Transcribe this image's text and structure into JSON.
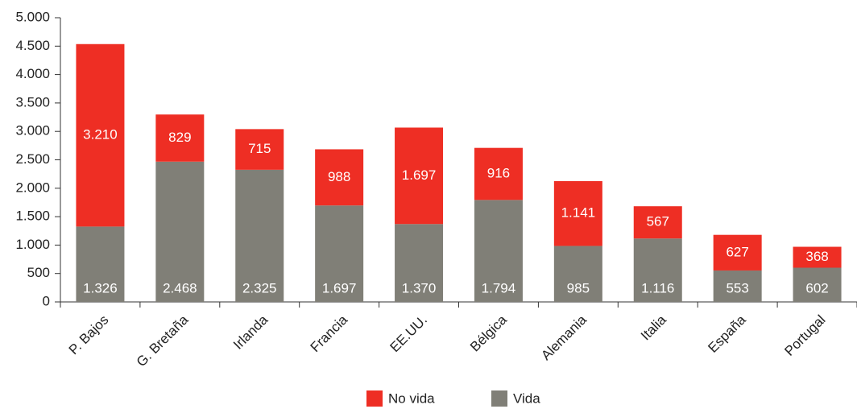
{
  "chart_data": {
    "type": "bar",
    "stacked": true,
    "categories": [
      "P. Bajos",
      "G. Bretaña",
      "Irlanda",
      "Francia",
      "EE.UU.",
      "Bélgica",
      "Alemania",
      "Italia",
      "España",
      "Portugal"
    ],
    "series": [
      {
        "name": "Vida",
        "color": "#807f77",
        "values": [
          1326,
          2468,
          2325,
          1697,
          1370,
          1794,
          985,
          1116,
          553,
          602
        ],
        "value_labels": [
          "1.326",
          "2.468",
          "2.325",
          "1.697",
          "1.370",
          "1.794",
          "985",
          "1.116",
          "553",
          "602"
        ]
      },
      {
        "name": "No vida",
        "color": "#ee2e24",
        "values": [
          3210,
          829,
          715,
          988,
          1697,
          916,
          1141,
          567,
          627,
          368
        ],
        "value_labels": [
          "3.210",
          "829",
          "715",
          "988",
          "1.697",
          "916",
          "1.141",
          "567",
          "627",
          "368"
        ]
      }
    ],
    "ylim": [
      0,
      5000
    ],
    "yticks": [
      0,
      500,
      {
        "value": 1000,
        "label": "1.000"
      },
      {
        "value": 1500,
        "label": "1.500"
      },
      {
        "value": 2000,
        "label": "2.000"
      },
      {
        "value": 2500,
        "label": "2.500"
      },
      {
        "value": 3000,
        "label": "3.000"
      },
      {
        "value": 3500,
        "label": "3.500"
      },
      {
        "value": 4000,
        "label": "4.000"
      },
      {
        "value": 4500,
        "label": "4.500"
      },
      {
        "value": 5000,
        "label": "5.000"
      }
    ],
    "legend": "bottom"
  }
}
